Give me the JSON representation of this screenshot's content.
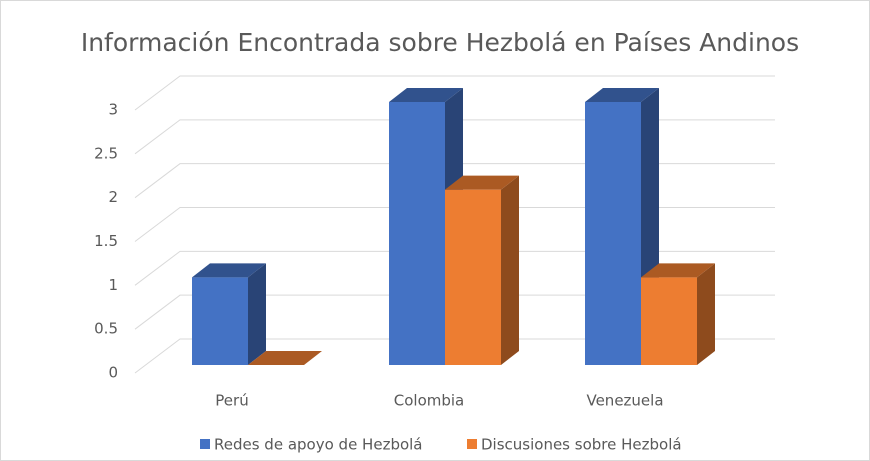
{
  "chart_data": {
    "type": "bar3d",
    "title": "Información Encontrada sobre Hezbolá en Países Andinos",
    "categories": [
      "Perú",
      "Colombia",
      "Venezuela"
    ],
    "series": [
      {
        "name": "Redes de apoyo de Hezbolá",
        "color": "#4472c4",
        "values": [
          1,
          3,
          3
        ]
      },
      {
        "name": "Discusiones sobre Hezbolá",
        "color": "#ed7d31",
        "values": [
          0,
          2,
          1
        ]
      }
    ],
    "ylim": [
      0,
      3
    ],
    "yticks": [
      0,
      0.5,
      1,
      1.5,
      2,
      2.5,
      3
    ],
    "grid": true,
    "legend": "bottom"
  }
}
